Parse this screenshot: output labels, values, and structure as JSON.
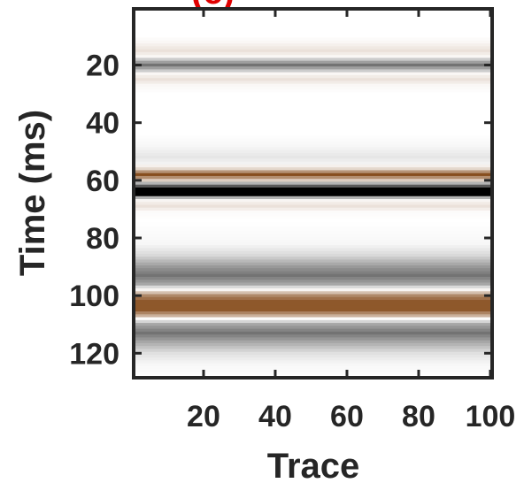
{
  "chart_data": {
    "type": "heatmap",
    "title": "",
    "panel_label": "(c)",
    "xlabel": "Trace",
    "ylabel": "Time (ms)",
    "xlim": [
      1,
      100
    ],
    "ylim": [
      128,
      1
    ],
    "y_reversed": true,
    "x_ticks": [
      20,
      40,
      60,
      80,
      100
    ],
    "y_ticks": [
      20,
      40,
      60,
      80,
      100,
      120
    ],
    "grid": false,
    "colormap": {
      "negative": "#000000",
      "zero": "#ffffff",
      "positive": "#7a3a05"
    },
    "description_units": "amplitude in [-1, 1]; constant across traces (flat events)",
    "amplitude_by_time": [
      {
        "time": 1,
        "amp": 0.0
      },
      {
        "time": 10,
        "amp": 0.0
      },
      {
        "time": 12,
        "amp": 0.04
      },
      {
        "time": 15,
        "amp": 0.15
      },
      {
        "time": 17,
        "amp": 0.04
      },
      {
        "time": 18,
        "amp": -0.2
      },
      {
        "time": 20,
        "amp": -0.55
      },
      {
        "time": 22,
        "amp": -0.2
      },
      {
        "time": 23,
        "amp": 0.04
      },
      {
        "time": 25,
        "amp": 0.15
      },
      {
        "time": 27,
        "amp": 0.04
      },
      {
        "time": 30,
        "amp": 0.0
      },
      {
        "time": 44,
        "amp": 0.0
      },
      {
        "time": 48,
        "amp": -0.03
      },
      {
        "time": 52,
        "amp": -0.1
      },
      {
        "time": 54,
        "amp": -0.05
      },
      {
        "time": 56,
        "amp": 0.2
      },
      {
        "time": 58,
        "amp": 0.9
      },
      {
        "time": 60,
        "amp": 0.25
      },
      {
        "time": 61,
        "amp": -0.3
      },
      {
        "time": 63,
        "amp": -1.0
      },
      {
        "time": 65,
        "amp": -1.0
      },
      {
        "time": 66,
        "amp": -0.3
      },
      {
        "time": 67,
        "amp": 0.05
      },
      {
        "time": 69,
        "amp": 0.15
      },
      {
        "time": 71,
        "amp": 0.02
      },
      {
        "time": 74,
        "amp": 0.0
      },
      {
        "time": 82,
        "amp": -0.03
      },
      {
        "time": 86,
        "amp": -0.15
      },
      {
        "time": 90,
        "amp": -0.4
      },
      {
        "time": 93,
        "amp": -0.55
      },
      {
        "time": 96,
        "amp": -0.35
      },
      {
        "time": 98,
        "amp": 0.05
      },
      {
        "time": 100,
        "amp": 0.6
      },
      {
        "time": 102,
        "amp": 0.85
      },
      {
        "time": 105,
        "amp": 0.85
      },
      {
        "time": 107,
        "amp": 0.4
      },
      {
        "time": 108,
        "amp": 0.02
      },
      {
        "time": 110,
        "amp": -0.35
      },
      {
        "time": 113,
        "amp": -0.55
      },
      {
        "time": 116,
        "amp": -0.35
      },
      {
        "time": 120,
        "amp": -0.12
      },
      {
        "time": 124,
        "amp": -0.03
      },
      {
        "time": 128,
        "amp": 0.0
      }
    ]
  }
}
